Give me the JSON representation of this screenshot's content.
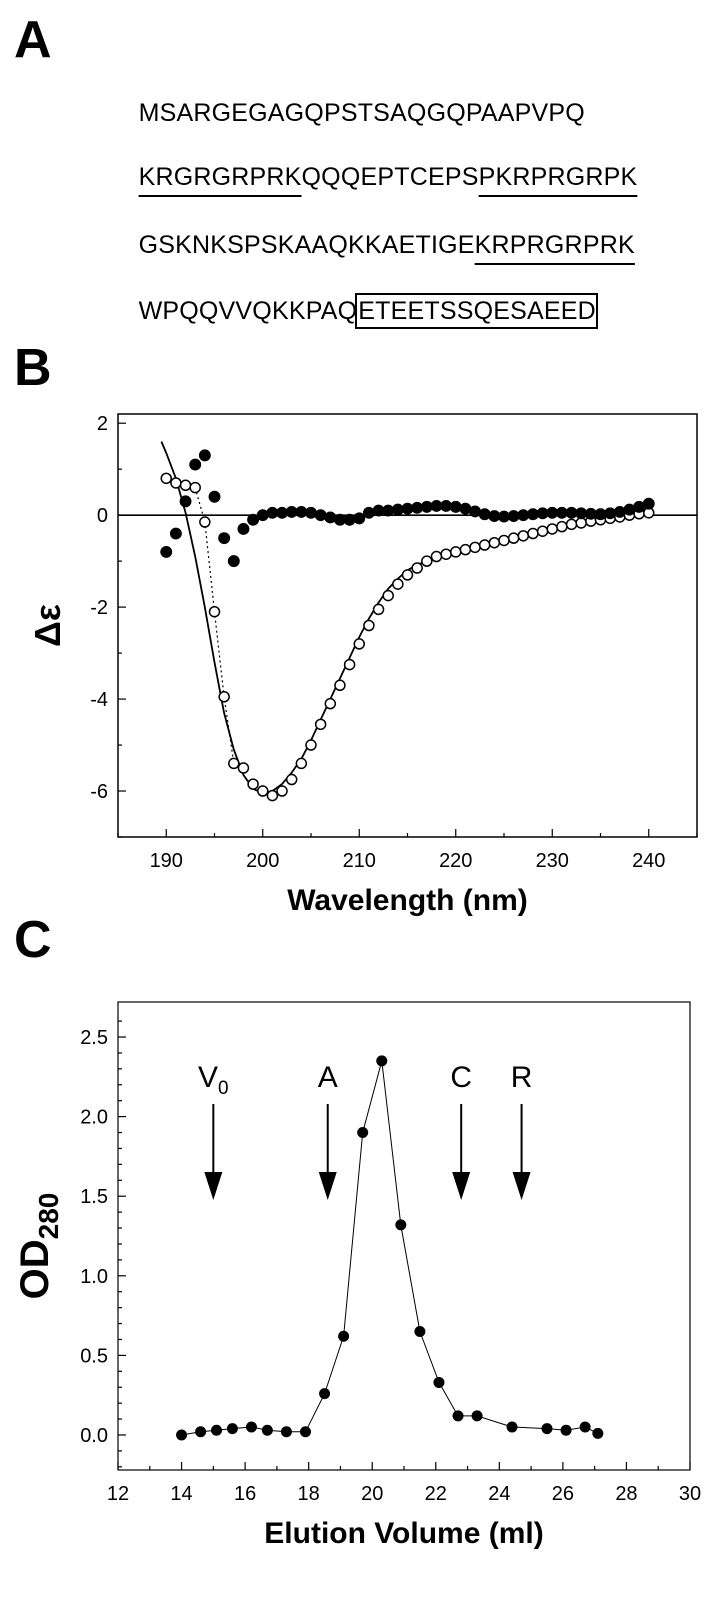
{
  "panels": {
    "a": "A",
    "b": "B",
    "c": "C"
  },
  "sequence": {
    "lines": [
      [
        {
          "text": "MSARGEGAGQPSTSAQGQPAAPVPQ",
          "style": "plain"
        }
      ],
      [
        {
          "text": "KRGRGRPRK",
          "style": "underline"
        },
        {
          "text": "QQQEPTCEPS",
          "style": "plain"
        },
        {
          "text": "PKRPRGRPK",
          "style": "underline"
        }
      ],
      [
        {
          "text": "GSKNKSPSKAAQKKAETIGE",
          "style": "plain"
        },
        {
          "text": "KRPRGRPRK",
          "style": "underline"
        }
      ],
      [
        {
          "text": "WPQQVVQKKPAQ",
          "style": "plain"
        },
        {
          "text": "ETEETSSQESAEED",
          "style": "boxed"
        }
      ]
    ]
  },
  "chart_data": [
    {
      "type": "scatter",
      "title": "",
      "xlabel": "Wavelength (nm)",
      "ylabel": "Δε",
      "xlim": [
        185,
        245
      ],
      "ylim": [
        -7,
        2.2
      ],
      "xticks": [
        190,
        200,
        210,
        220,
        230,
        240
      ],
      "yticks": [
        2,
        0,
        -2,
        -4,
        -6
      ],
      "xtick_labels": [
        "190",
        "200",
        "210",
        "220",
        "230",
        "240"
      ],
      "ytick_labels": [
        "2",
        "0",
        "-2",
        "-4",
        "-6"
      ],
      "zero_line": true,
      "series": [
        {
          "marker": "open-circle",
          "x": [
            190,
            191,
            192,
            193,
            194,
            195,
            196,
            197,
            198,
            199,
            200,
            201,
            202,
            203,
            204,
            205,
            206,
            207,
            208,
            209,
            210,
            211,
            212,
            213,
            214,
            215,
            216,
            217,
            218,
            219,
            220,
            221,
            222,
            223,
            224,
            225,
            226,
            227,
            228,
            229,
            230,
            231,
            232,
            233,
            234,
            235,
            236,
            237,
            238,
            239,
            240
          ],
          "y": [
            0.8,
            0.7,
            0.65,
            0.6,
            -0.15,
            -2.1,
            -3.95,
            -5.4,
            -5.5,
            -5.85,
            -6.0,
            -6.1,
            -6.0,
            -5.75,
            -5.4,
            -5.0,
            -4.55,
            -4.1,
            -3.7,
            -3.25,
            -2.8,
            -2.4,
            -2.05,
            -1.75,
            -1.5,
            -1.3,
            -1.15,
            -1.0,
            -0.9,
            -0.85,
            -0.8,
            -0.75,
            -0.7,
            -0.65,
            -0.6,
            -0.55,
            -0.5,
            -0.45,
            -0.4,
            -0.35,
            -0.3,
            -0.25,
            -0.2,
            -0.17,
            -0.13,
            -0.1,
            -0.07,
            -0.04,
            0.0,
            0.03,
            0.05
          ]
        },
        {
          "marker": "filled-circle",
          "x": [
            190,
            191,
            192,
            193,
            194,
            195,
            196,
            197,
            198,
            199,
            200,
            201,
            202,
            203,
            204,
            205,
            206,
            207,
            208,
            209,
            210,
            211,
            212,
            213,
            214,
            215,
            216,
            217,
            218,
            219,
            220,
            221,
            222,
            223,
            224,
            225,
            226,
            227,
            228,
            229,
            230,
            231,
            232,
            233,
            234,
            235,
            236,
            237,
            238,
            239,
            240
          ],
          "y": [
            -0.8,
            -0.4,
            0.3,
            1.1,
            1.3,
            0.4,
            -0.5,
            -1.0,
            -0.3,
            -0.1,
            0.0,
            0.05,
            0.05,
            0.07,
            0.07,
            0.05,
            0.0,
            -0.05,
            -0.1,
            -0.1,
            -0.07,
            0.05,
            0.1,
            0.1,
            0.12,
            0.14,
            0.16,
            0.18,
            0.2,
            0.2,
            0.18,
            0.14,
            0.08,
            0.02,
            -0.02,
            -0.03,
            -0.02,
            0.0,
            0.02,
            0.04,
            0.05,
            0.05,
            0.05,
            0.04,
            0.03,
            0.02,
            0.04,
            0.07,
            0.12,
            0.18,
            0.25
          ]
        },
        {
          "marker": "none",
          "line": "solid",
          "x": [
            189.5,
            190,
            191,
            192,
            193,
            194,
            195,
            196,
            197,
            198,
            199,
            200,
            201,
            202,
            203,
            204,
            205,
            206,
            207,
            208,
            209,
            210,
            211,
            212,
            213,
            214,
            215,
            216,
            218,
            220,
            222,
            224,
            226,
            228,
            230,
            232,
            234,
            236,
            238,
            240
          ],
          "y": [
            1.6,
            1.35,
            0.8,
            0.05,
            -0.9,
            -2.0,
            -3.2,
            -4.3,
            -5.1,
            -5.65,
            -5.95,
            -6.05,
            -6.0,
            -5.85,
            -5.6,
            -5.3,
            -4.9,
            -4.45,
            -4.0,
            -3.55,
            -3.1,
            -2.65,
            -2.25,
            -1.9,
            -1.6,
            -1.38,
            -1.2,
            -1.08,
            -0.92,
            -0.8,
            -0.7,
            -0.6,
            -0.5,
            -0.4,
            -0.32,
            -0.24,
            -0.16,
            -0.1,
            -0.04,
            0.0
          ]
        },
        {
          "marker": "none",
          "line": "dotted",
          "x": [
            193,
            194,
            195,
            196,
            197
          ],
          "y": [
            0.6,
            -0.15,
            -2.1,
            -3.95,
            -5.4
          ]
        }
      ]
    },
    {
      "type": "line",
      "title": "",
      "xlabel": "Elution Volume (ml)",
      "ylabel": "OD",
      "ylabel_sub": "280",
      "xlim": [
        12,
        30
      ],
      "ylim": [
        -0.22,
        2.72
      ],
      "xticks": [
        12,
        14,
        16,
        18,
        20,
        22,
        24,
        26,
        28,
        30
      ],
      "yticks": [
        0.0,
        0.5,
        1.0,
        1.5,
        2.0,
        2.5
      ],
      "xtick_labels": [
        "12",
        "14",
        "16",
        "18",
        "20",
        "22",
        "24",
        "26",
        "28",
        "30"
      ],
      "ytick_labels": [
        "0.0",
        "0.5",
        "1.0",
        "1.5",
        "2.0",
        "2.5"
      ],
      "series": [
        {
          "marker": "filled-circle",
          "x": [
            14.0,
            14.6,
            15.1,
            15.6,
            16.2,
            16.7,
            17.3,
            17.9,
            18.5,
            19.1,
            19.7,
            20.3,
            20.9,
            21.5,
            22.1,
            22.7,
            23.3,
            24.4,
            25.5,
            26.1,
            26.7,
            27.1
          ],
          "y": [
            0.0,
            0.02,
            0.03,
            0.04,
            0.05,
            0.03,
            0.02,
            0.02,
            0.26,
            0.62,
            1.9,
            2.35,
            1.32,
            0.65,
            0.33,
            0.12,
            0.12,
            0.05,
            0.04,
            0.03,
            0.05,
            0.01
          ]
        }
      ],
      "annotations": [
        {
          "label": "V",
          "sub": "0",
          "x": 15.0
        },
        {
          "label": "A",
          "sub": "",
          "x": 18.6
        },
        {
          "label": "C",
          "sub": "",
          "x": 22.8
        },
        {
          "label": "R",
          "sub": "",
          "x": 24.7
        }
      ]
    }
  ]
}
